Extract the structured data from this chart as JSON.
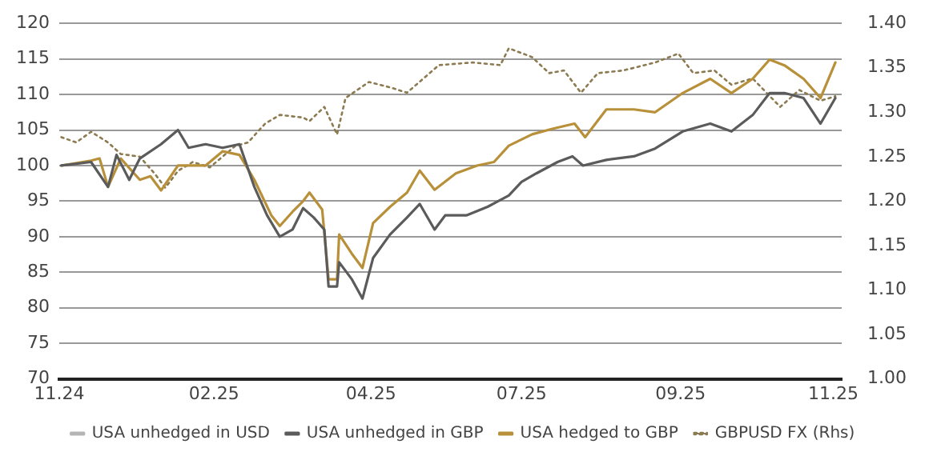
{
  "chart_data": {
    "type": "line",
    "xlim": [
      "2024-11-20",
      "2025-11-24"
    ],
    "xticks": [
      {
        "value": "2024-11-20",
        "label": "11.24"
      },
      {
        "value": "2025-02-01",
        "label": "02.25"
      },
      {
        "value": "2025-04-16",
        "label": "04.25"
      },
      {
        "value": "2025-06-26",
        "label": "07.25"
      },
      {
        "value": "2025-09-09",
        "label": "09.25"
      },
      {
        "value": "2025-11-20",
        "label": "11.25"
      }
    ],
    "ylim": [
      70,
      120
    ],
    "yticks": [
      70,
      75,
      80,
      85,
      90,
      95,
      100,
      105,
      110,
      115,
      120
    ],
    "y2lim": [
      1,
      1.4
    ],
    "y2ticks": [
      {
        "value": 1,
        "label": "1.00"
      },
      {
        "value": 1.05,
        "label": "1.05"
      },
      {
        "value": 1.1,
        "label": "1.10"
      },
      {
        "value": 1.15,
        "label": "1.15"
      },
      {
        "value": 1.2,
        "label": "1.20"
      },
      {
        "value": 1.25,
        "label": "1.25"
      },
      {
        "value": 1.3,
        "label": "1.30"
      },
      {
        "value": 1.35,
        "label": "1.35"
      },
      {
        "value": 1.4,
        "label": "1.40"
      }
    ],
    "grid": "y",
    "legend": "bottom",
    "marker": "none",
    "series": [
      {
        "name": "USA unhedged in USD",
        "color": "#b4b4b4",
        "line_style": "solid"
      },
      {
        "name": "USA unhedged in GBP",
        "color": "#5b5b5b",
        "line_style": "solid",
        "x": [
          "2024-11-21",
          "2024-12-05",
          "2024-12-13",
          "2024-12-17",
          "2024-12-23",
          "2024-12-28",
          "2025-01-07",
          "2025-01-15",
          "2025-01-20",
          "2025-01-28",
          "2025-02-05",
          "2025-02-13",
          "2025-02-20",
          "2025-02-26",
          "2025-03-04",
          "2025-03-10",
          "2025-03-15",
          "2025-03-20",
          "2025-03-25",
          "2025-03-27",
          "2025-03-31",
          "2025-04-01",
          "2025-04-07",
          "2025-04-12",
          "2025-04-17",
          "2025-04-25",
          "2025-05-03",
          "2025-05-09",
          "2025-05-16",
          "2025-05-21",
          "2025-05-31",
          "2025-06-10",
          "2025-06-20",
          "2025-06-26",
          "2025-07-03",
          "2025-07-13",
          "2025-07-20",
          "2025-07-25",
          "2025-08-05",
          "2025-08-18",
          "2025-08-28",
          "2025-09-10",
          "2025-09-23",
          "2025-10-03",
          "2025-10-13",
          "2025-10-21",
          "2025-10-28",
          "2025-11-06",
          "2025-11-14",
          "2025-11-21"
        ],
        "values": [
          100,
          100.5,
          97,
          101.5,
          98,
          101,
          103,
          105,
          102.5,
          103,
          102.5,
          103,
          97,
          93,
          90,
          91,
          94,
          92.7,
          91,
          83,
          83,
          86.4,
          84,
          81.3,
          87,
          90.3,
          92.7,
          94.6,
          91,
          93,
          93,
          94.2,
          95.8,
          97.7,
          98.9,
          100.5,
          101.3,
          100,
          100.8,
          101.3,
          102.4,
          104.8,
          105.9,
          104.8,
          107.1,
          110.2,
          110.2,
          109.5,
          105.9,
          109.5
        ]
      },
      {
        "name": "USA hedged to GBP",
        "color": "#b8903a",
        "line_style": "solid",
        "x": [
          "2024-11-21",
          "2024-12-05",
          "2024-12-09",
          "2024-12-13",
          "2024-12-19",
          "2024-12-28",
          "2025-01-02",
          "2025-01-07",
          "2025-01-15",
          "2025-01-28",
          "2025-02-05",
          "2025-02-13",
          "2025-02-20",
          "2025-02-28",
          "2025-03-04",
          "2025-03-10",
          "2025-03-15",
          "2025-03-18",
          "2025-03-24",
          "2025-03-27",
          "2025-03-31",
          "2025-04-01",
          "2025-04-07",
          "2025-04-12",
          "2025-04-17",
          "2025-04-25",
          "2025-05-03",
          "2025-05-09",
          "2025-05-16",
          "2025-05-26",
          "2025-06-05",
          "2025-06-13",
          "2025-06-20",
          "2025-07-01",
          "2025-07-11",
          "2025-07-21",
          "2025-07-26",
          "2025-08-05",
          "2025-08-18",
          "2025-08-28",
          "2025-09-10",
          "2025-09-23",
          "2025-10-03",
          "2025-10-13",
          "2025-10-21",
          "2025-10-28",
          "2025-11-06",
          "2025-11-14",
          "2025-11-21"
        ],
        "values": [
          100,
          100.7,
          101,
          97,
          101,
          98,
          98.5,
          96.5,
          100,
          100,
          102,
          101.5,
          98,
          93,
          91.5,
          93.5,
          95,
          96.2,
          93.8,
          84,
          84,
          90.3,
          87.6,
          85.6,
          91.9,
          94.2,
          96.2,
          99.3,
          96.6,
          98.9,
          100,
          100.5,
          102.8,
          104.4,
          105.2,
          105.9,
          104,
          107.9,
          107.9,
          107.5,
          110.2,
          112.2,
          110.2,
          112.2,
          114.9,
          114.1,
          112.2,
          109.5,
          114.5
        ]
      },
      {
        "name": "GBPUSD FX (Rhs)",
        "color": "#8c7a50",
        "line_style": "dotted",
        "axis": "y2",
        "x": [
          "2024-11-21",
          "2024-11-28",
          "2024-12-05",
          "2024-12-13",
          "2024-12-19",
          "2024-12-28",
          "2025-01-04",
          "2025-01-09",
          "2025-01-15",
          "2025-01-22",
          "2025-01-30",
          "2025-02-11",
          "2025-02-17",
          "2025-02-25",
          "2025-03-04",
          "2025-03-15",
          "2025-03-18",
          "2025-03-25",
          "2025-03-31",
          "2025-04-04",
          "2025-04-15",
          "2025-04-25",
          "2025-05-03",
          "2025-05-18",
          "2025-06-03",
          "2025-06-16",
          "2025-06-20",
          "2025-07-01",
          "2025-07-09",
          "2025-07-16",
          "2025-07-24",
          "2025-08-01",
          "2025-08-13",
          "2025-08-28",
          "2025-09-08",
          "2025-09-15",
          "2025-09-25",
          "2025-10-03",
          "2025-10-13",
          "2025-10-26",
          "2025-11-04",
          "2025-11-14",
          "2025-11-21"
        ],
        "values": [
          1.272,
          1.266,
          1.278,
          1.266,
          1.253,
          1.25,
          1.231,
          1.215,
          1.234,
          1.244,
          1.238,
          1.262,
          1.266,
          1.287,
          1.297,
          1.294,
          1.29,
          1.306,
          1.275,
          1.316,
          1.334,
          1.328,
          1.322,
          1.353,
          1.356,
          1.353,
          1.372,
          1.362,
          1.344,
          1.347,
          1.322,
          1.344,
          1.347,
          1.356,
          1.366,
          1.344,
          1.347,
          1.331,
          1.338,
          1.306,
          1.325,
          1.313,
          1.318
        ]
      }
    ]
  }
}
